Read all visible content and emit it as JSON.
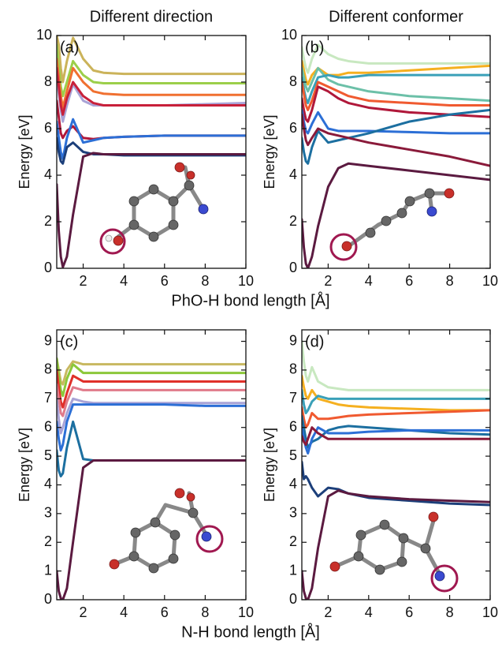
{
  "chart_data": [
    {
      "type": "line",
      "title": "Different direction",
      "label": "(a)",
      "ylabel": "Energy [eV]",
      "xlabel": "PhO-H bond length  [Å]",
      "x": [
        0.7,
        0.8,
        0.9,
        1.0,
        1.2,
        1.5,
        2,
        2.5,
        3,
        4,
        6,
        8,
        10
      ],
      "xlim": [
        0.7,
        10
      ],
      "ylim": [
        0,
        10
      ],
      "xticks": [
        2,
        4,
        6,
        8,
        10
      ],
      "yticks": [
        0,
        2,
        4,
        6,
        8,
        10
      ],
      "series": [
        {
          "color": "#cbb35a",
          "values": [
            10,
            9.6,
            8.6,
            8.0,
            8.9,
            9.9,
            9.0,
            8.5,
            8.4,
            8.35,
            8.35,
            8.35,
            8.35
          ]
        },
        {
          "color": "#9ccf4a",
          "values": [
            9.6,
            8.7,
            7.8,
            7.4,
            8.0,
            8.9,
            8.3,
            8.0,
            7.95,
            7.95,
            7.95,
            7.95,
            7.95
          ]
        },
        {
          "color": "#f07030",
          "values": [
            9.0,
            8.2,
            7.4,
            6.9,
            7.6,
            8.6,
            8.0,
            7.6,
            7.5,
            7.45,
            7.45,
            7.45,
            7.45
          ]
        },
        {
          "color": "#a9a3d6",
          "values": [
            8.3,
            7.5,
            6.8,
            6.3,
            7.0,
            7.9,
            7.2,
            7.0,
            7.0,
            7.0,
            7.0,
            7.05,
            7.1
          ]
        },
        {
          "color": "#c8203a",
          "values": [
            8.6,
            7.8,
            7.0,
            6.6,
            7.3,
            8.0,
            7.4,
            7.1,
            7.0,
            7.0,
            7.0,
            7.0,
            7.0
          ]
        },
        {
          "color": "#b0183a",
          "values": [
            7.2,
            6.5,
            5.8,
            5.6,
            5.9,
            6.1,
            5.6,
            5.55,
            5.6,
            5.65,
            5.7,
            5.7,
            5.7
          ]
        },
        {
          "color": "#2c6fd6",
          "values": [
            6.3,
            5.6,
            5.0,
            4.7,
            5.6,
            6.4,
            5.4,
            5.5,
            5.6,
            5.65,
            5.7,
            5.7,
            5.7
          ]
        },
        {
          "color": "#1c3f7a",
          "values": [
            5.6,
            5.0,
            4.6,
            4.5,
            5.2,
            5.4,
            5.0,
            4.9,
            4.9,
            4.85,
            4.85,
            4.85,
            4.85
          ]
        },
        {
          "color": "#5b1a40",
          "values": [
            3.6,
            1.6,
            0.5,
            0.05,
            0.5,
            2.3,
            4.8,
            4.95,
            4.9,
            4.9,
            4.9,
            4.9,
            4.9
          ]
        }
      ]
    },
    {
      "type": "line",
      "title": "Different conformer",
      "label": "(b)",
      "ylabel": "Energy [eV]",
      "x": [
        0.7,
        0.8,
        0.9,
        1.0,
        1.2,
        1.5,
        2,
        2.5,
        3,
        4,
        6,
        8,
        10
      ],
      "xlim": [
        0.7,
        10
      ],
      "ylim": [
        0,
        10
      ],
      "xticks": [
        2,
        4,
        6,
        8,
        10
      ],
      "yticks": [
        0,
        2,
        4,
        6,
        8,
        10
      ],
      "series": [
        {
          "color": "#c8e8c0",
          "values": [
            9.5,
            9.0,
            8.6,
            8.4,
            9.0,
            9.6,
            9.2,
            9.0,
            8.9,
            8.8,
            8.8,
            8.8,
            8.8
          ]
        },
        {
          "color": "#f5b020",
          "values": [
            8.9,
            8.5,
            8.1,
            7.9,
            8.3,
            8.6,
            8.3,
            8.3,
            8.4,
            8.4,
            8.5,
            8.6,
            8.7
          ]
        },
        {
          "color": "#6cc0a8",
          "values": [
            8.6,
            8.2,
            7.8,
            7.6,
            8.0,
            8.6,
            8.1,
            7.9,
            7.8,
            7.6,
            7.4,
            7.3,
            7.2
          ]
        },
        {
          "color": "#3aa0b8",
          "values": [
            8.2,
            7.7,
            7.3,
            7.1,
            7.6,
            8.2,
            8.3,
            8.2,
            8.2,
            8.3,
            8.3,
            8.3,
            8.3
          ]
        },
        {
          "color": "#f05a30",
          "values": [
            8.0,
            7.5,
            7.0,
            6.8,
            7.2,
            8.0,
            7.8,
            7.6,
            7.4,
            7.2,
            7.1,
            7.0,
            7.0
          ]
        },
        {
          "color": "#b0183a",
          "values": [
            7.3,
            6.8,
            6.4,
            6.3,
            6.8,
            7.8,
            7.6,
            7.3,
            7.1,
            6.9,
            6.7,
            6.6,
            6.5
          ]
        },
        {
          "color": "#2c6fd6",
          "values": [
            6.8,
            6.3,
            5.9,
            5.8,
            6.2,
            6.7,
            6.0,
            5.9,
            5.9,
            5.9,
            5.85,
            5.8,
            5.8
          ]
        },
        {
          "color": "#1c6fa0",
          "values": [
            5.6,
            5.0,
            4.6,
            4.5,
            5.2,
            5.9,
            5.4,
            5.5,
            5.6,
            5.8,
            6.3,
            6.6,
            6.8
          ]
        },
        {
          "color": "#8a1a3a",
          "values": [
            6.6,
            6.0,
            5.5,
            5.3,
            5.6,
            6.0,
            5.8,
            5.7,
            5.6,
            5.4,
            5.1,
            4.8,
            4.4
          ]
        },
        {
          "color": "#5b1a40",
          "values": [
            2.1,
            0.9,
            0.2,
            0,
            0.5,
            1.8,
            3.5,
            4.3,
            4.5,
            4.4,
            4.2,
            4.0,
            3.8
          ]
        }
      ]
    },
    {
      "type": "line",
      "label": "(c)",
      "ylabel": "Energy [eV]",
      "xlabel": "N-H bond length [Å]",
      "x": [
        0.7,
        0.8,
        0.9,
        1.0,
        1.2,
        1.5,
        2,
        2.5,
        3,
        4,
        6,
        8,
        10
      ],
      "xlim": [
        0.7,
        10
      ],
      "ylim": [
        0,
        9.4
      ],
      "xticks": [
        2,
        4,
        6,
        8,
        10
      ],
      "yticks": [
        0,
        1,
        2,
        3,
        4,
        5,
        6,
        7,
        8,
        9
      ],
      "series": [
        {
          "color": "#c8b860",
          "values": [
            8.4,
            8.0,
            7.6,
            7.5,
            8.0,
            8.3,
            8.2,
            8.2,
            8.2,
            8.2,
            8.2,
            8.2,
            8.2
          ]
        },
        {
          "color": "#8cc83a",
          "values": [
            8.4,
            7.8,
            7.3,
            7.1,
            7.7,
            8.2,
            7.9,
            7.9,
            7.9,
            7.9,
            7.9,
            7.9,
            7.9
          ]
        },
        {
          "color": "#e0302a",
          "values": [
            8.0,
            7.4,
            6.9,
            6.7,
            7.2,
            7.8,
            7.6,
            7.6,
            7.6,
            7.6,
            7.6,
            7.6,
            7.6
          ]
        },
        {
          "color": "#e07a8a",
          "values": [
            7.5,
            7.0,
            6.5,
            6.4,
            6.9,
            7.4,
            7.3,
            7.3,
            7.3,
            7.3,
            7.3,
            7.3,
            7.3
          ]
        },
        {
          "color": "#a9a3d6",
          "values": [
            7.0,
            6.3,
            5.8,
            6.0,
            6.5,
            7.0,
            6.9,
            6.85,
            6.85,
            6.85,
            6.85,
            6.85,
            6.85
          ]
        },
        {
          "color": "#2c6fd6",
          "values": [
            6.2,
            5.6,
            5.2,
            5.4,
            6.2,
            6.8,
            6.8,
            6.8,
            6.8,
            6.8,
            6.8,
            6.75,
            6.75
          ]
        },
        {
          "color": "#1c6fa0",
          "values": [
            5.2,
            4.5,
            4.3,
            4.4,
            5.3,
            6.2,
            4.9,
            4.85,
            4.85,
            4.85,
            4.85,
            4.85,
            4.85
          ]
        },
        {
          "color": "#5b1a40",
          "values": [
            1.0,
            0.3,
            0.05,
            0.0,
            0.4,
            2.0,
            4.6,
            4.85,
            4.85,
            4.85,
            4.85,
            4.85,
            4.85
          ]
        }
      ]
    },
    {
      "type": "line",
      "label": "(d)",
      "ylabel": "Energy [eV]",
      "x": [
        0.7,
        0.8,
        0.9,
        1.0,
        1.2,
        1.5,
        2,
        2.5,
        3,
        4,
        6,
        8,
        10
      ],
      "xlim": [
        0.7,
        10
      ],
      "ylim": [
        0,
        9.4
      ],
      "xticks": [
        2,
        4,
        6,
        8,
        10
      ],
      "yticks": [
        0,
        1,
        2,
        3,
        4,
        5,
        6,
        7,
        8,
        9
      ],
      "series": [
        {
          "color": "#c8e8c0",
          "values": [
            9.0,
            8.3,
            7.8,
            7.6,
            8.1,
            7.6,
            7.4,
            7.35,
            7.3,
            7.3,
            7.3,
            7.3,
            7.3
          ]
        },
        {
          "color": "#f5b020",
          "values": [
            7.8,
            7.4,
            7.1,
            7.0,
            7.3,
            7.0,
            6.9,
            6.8,
            6.75,
            6.7,
            6.65,
            6.6,
            6.6
          ]
        },
        {
          "color": "#3aa0b8",
          "values": [
            7.3,
            6.8,
            6.5,
            6.6,
            6.9,
            7.1,
            7.0,
            7.0,
            7.0,
            7.0,
            7.0,
            7.0,
            7.0
          ]
        },
        {
          "color": "#f05a30",
          "values": [
            6.7,
            6.3,
            6.0,
            6.1,
            6.5,
            6.3,
            6.3,
            6.35,
            6.4,
            6.45,
            6.5,
            6.55,
            6.6
          ]
        },
        {
          "color": "#1c6fa0",
          "values": [
            6.4,
            6.0,
            5.6,
            5.3,
            5.5,
            5.6,
            5.9,
            6.0,
            6.05,
            6.0,
            5.9,
            5.8,
            5.75
          ]
        },
        {
          "color": "#2c6fd6",
          "values": [
            6.0,
            5.6,
            5.3,
            5.1,
            5.6,
            6.0,
            5.8,
            5.8,
            5.8,
            5.85,
            5.9,
            5.9,
            5.9
          ]
        },
        {
          "color": "#8a1a3a",
          "values": [
            5.7,
            5.5,
            5.4,
            5.6,
            6.0,
            5.8,
            5.6,
            5.6,
            5.6,
            5.6,
            5.6,
            5.6,
            5.6
          ]
        },
        {
          "color": "#1c3f7a",
          "values": [
            4.8,
            4.2,
            4.3,
            4.2,
            3.9,
            3.6,
            3.9,
            3.85,
            3.7,
            3.55,
            3.45,
            3.35,
            3.3
          ]
        },
        {
          "color": "#5b1a40",
          "values": [
            1.0,
            0.3,
            0.05,
            0.0,
            0.4,
            1.8,
            3.6,
            3.8,
            3.7,
            3.6,
            3.5,
            3.45,
            3.4
          ]
        }
      ]
    }
  ]
}
